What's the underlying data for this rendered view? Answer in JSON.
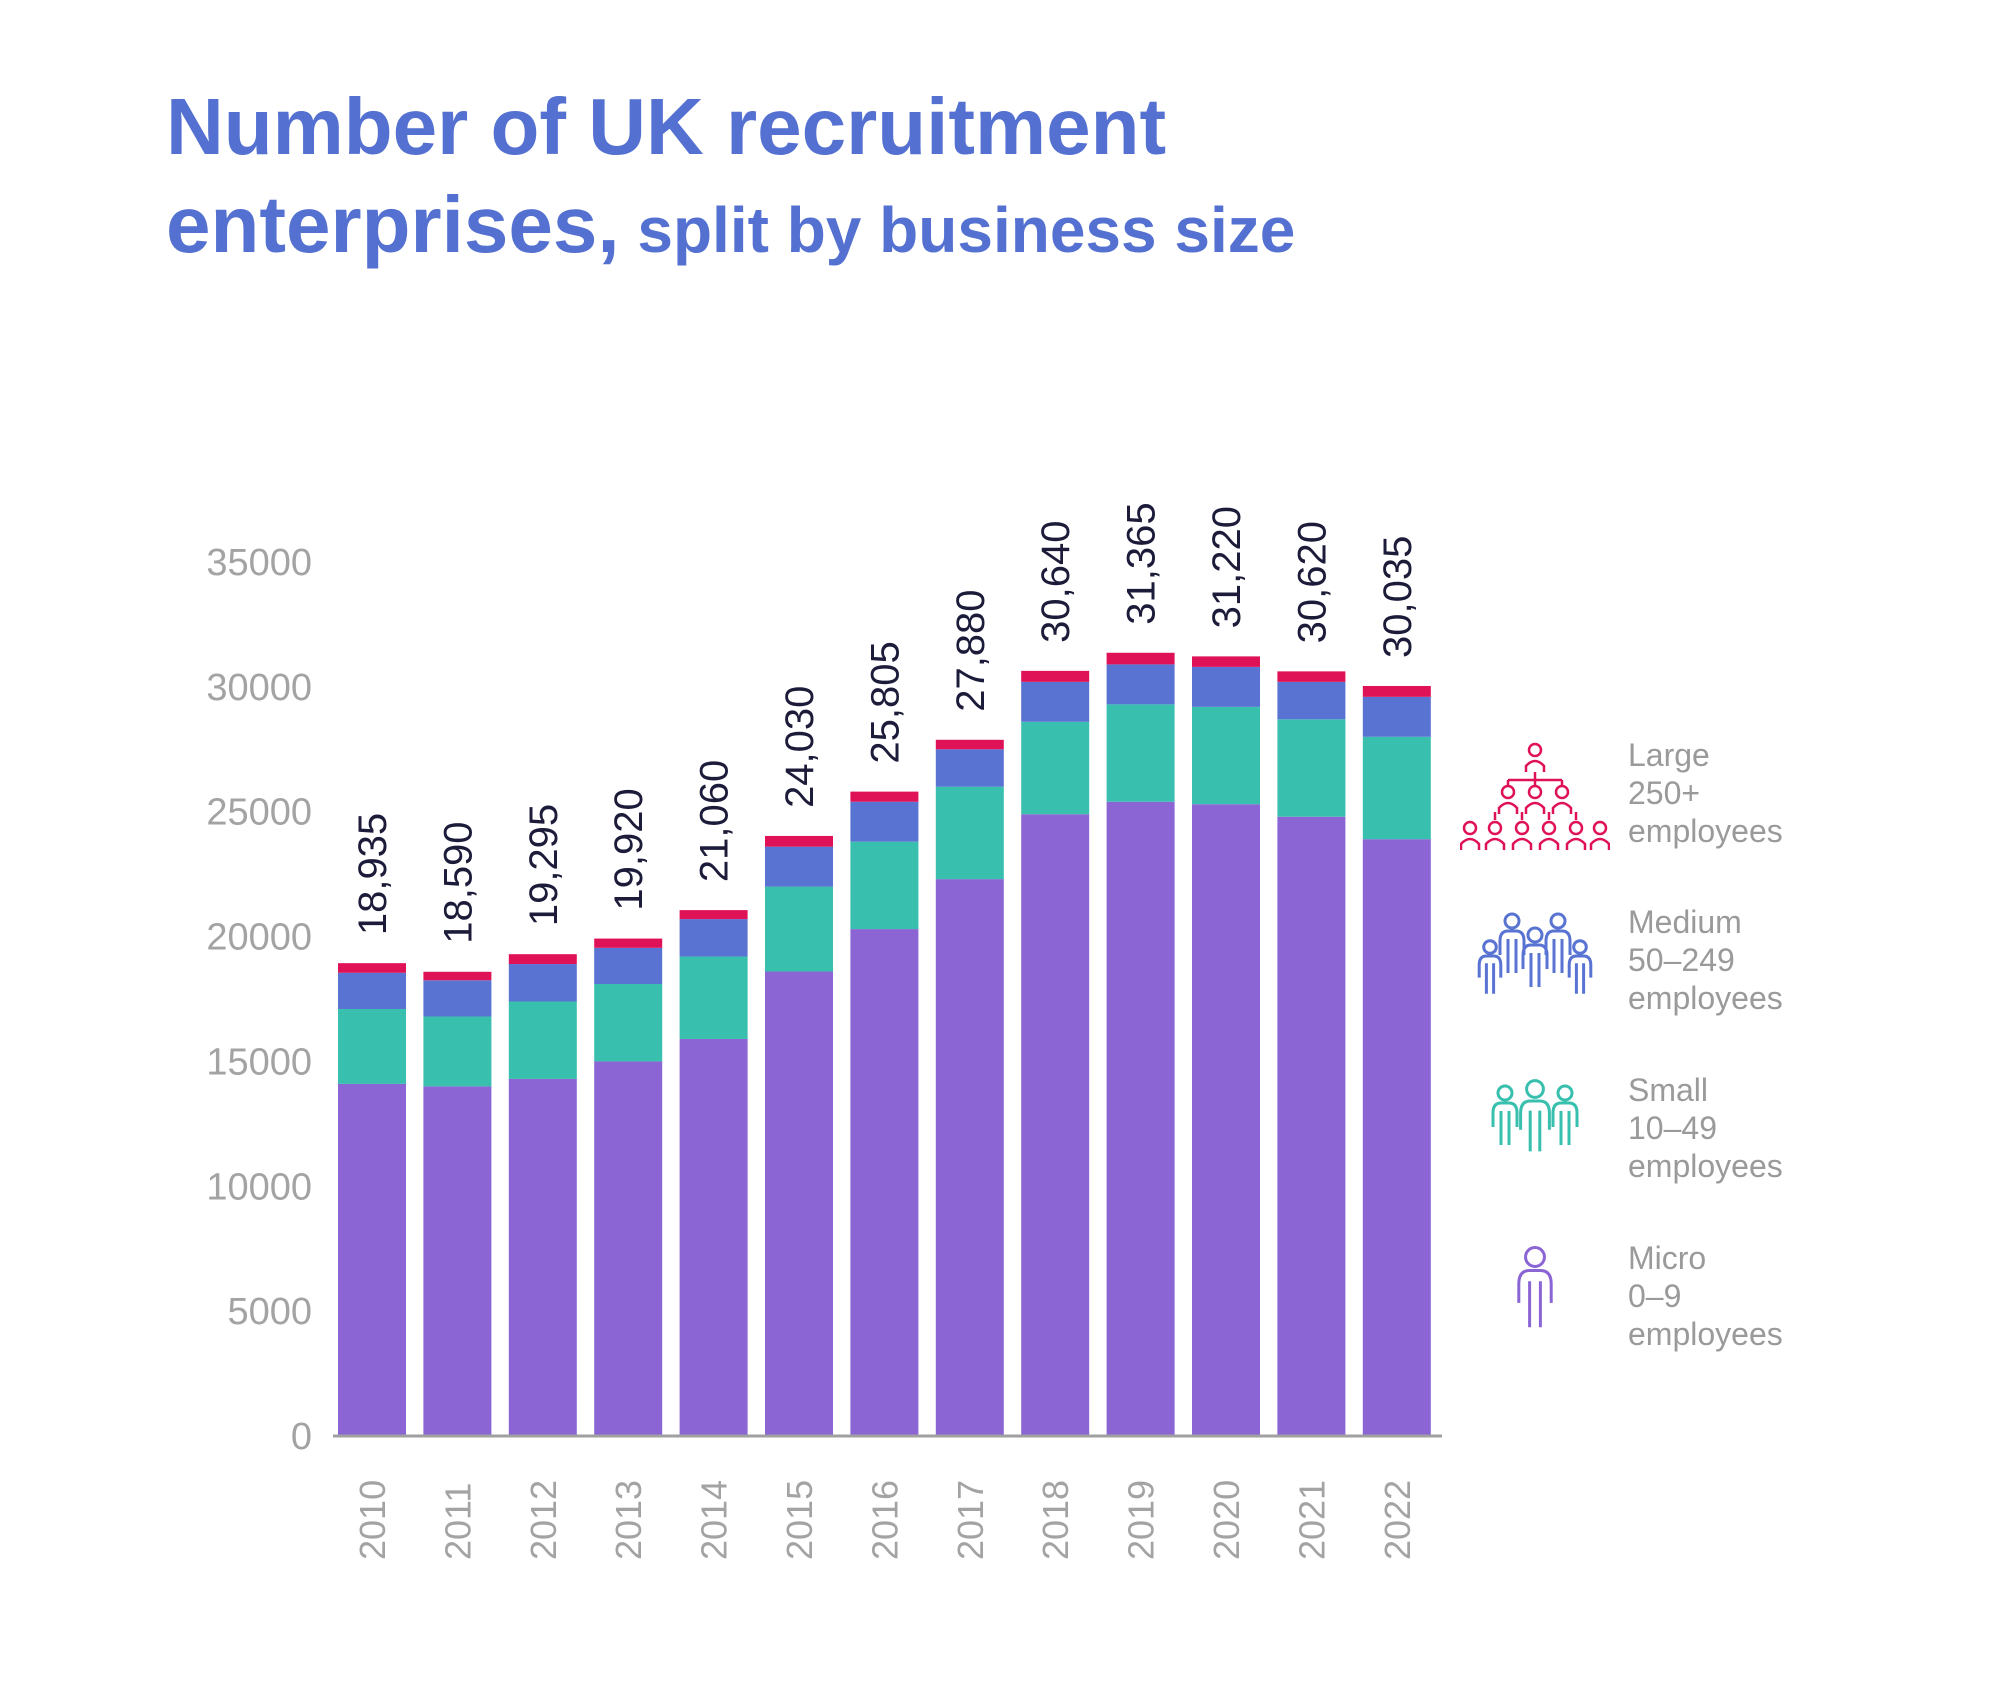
{
  "title": {
    "line1": "Number of UK recruitment",
    "line2_main": "enterprises,",
    "line2_sub": " split by business size"
  },
  "colors": {
    "micro": "#8b65d4",
    "small": "#38bfae",
    "medium": "#5973d3",
    "large": "#e01257",
    "title": "#5470d0",
    "axis_text": "#a3a3a3",
    "total_label": "#1c1c3a"
  },
  "chart_data": {
    "type": "bar",
    "stacked": true,
    "categories": [
      "2010",
      "2011",
      "2012",
      "2013",
      "2014",
      "2015",
      "2016",
      "2017",
      "2018",
      "2019",
      "2020",
      "2021",
      "2022"
    ],
    "series": [
      {
        "name": "Micro 0–9 employees",
        "key": "micro",
        "values": [
          14100,
          14000,
          14300,
          15000,
          15900,
          18600,
          20300,
          22300,
          24900,
          25400,
          25300,
          24800,
          23900
        ]
      },
      {
        "name": "Small 10–49 employees",
        "key": "small",
        "values": [
          3000,
          2800,
          3100,
          3100,
          3300,
          3400,
          3500,
          3700,
          3700,
          3900,
          3900,
          3900,
          4100
        ]
      },
      {
        "name": "Medium 50–249 employees",
        "key": "medium",
        "values": [
          1450,
          1450,
          1500,
          1450,
          1500,
          1600,
          1600,
          1500,
          1600,
          1600,
          1600,
          1500,
          1600
        ]
      },
      {
        "name": "Large 250+ employees",
        "key": "large",
        "values": [
          385,
          340,
          395,
          370,
          360,
          430,
          405,
          380,
          440,
          465,
          420,
          420,
          435
        ]
      }
    ],
    "totals": [
      "18,935",
      "18,590",
      "19,295",
      "19,920",
      "21,060",
      "24,030",
      "25,805",
      "27,880",
      "30,640",
      "31,365",
      "31,220",
      "30,620",
      "30,035"
    ],
    "y_ticks": [
      "0",
      "5000",
      "10000",
      "15000",
      "20000",
      "25000",
      "30000",
      "35000"
    ],
    "ylim": [
      0,
      35000
    ],
    "grid": false,
    "legend_position": "right"
  },
  "legend": [
    {
      "key": "large",
      "icon": "large-group-icon",
      "line1": "Large",
      "line2": "250+",
      "line3": "employees"
    },
    {
      "key": "medium",
      "icon": "medium-group-icon",
      "line1": "Medium",
      "line2": "50–249",
      "line3": "employees"
    },
    {
      "key": "small",
      "icon": "small-group-icon",
      "line1": "Small",
      "line2": "10–49",
      "line3": "employees"
    },
    {
      "key": "micro",
      "icon": "person-icon",
      "line1": "Micro",
      "line2": "0–9",
      "line3": "employees"
    }
  ]
}
